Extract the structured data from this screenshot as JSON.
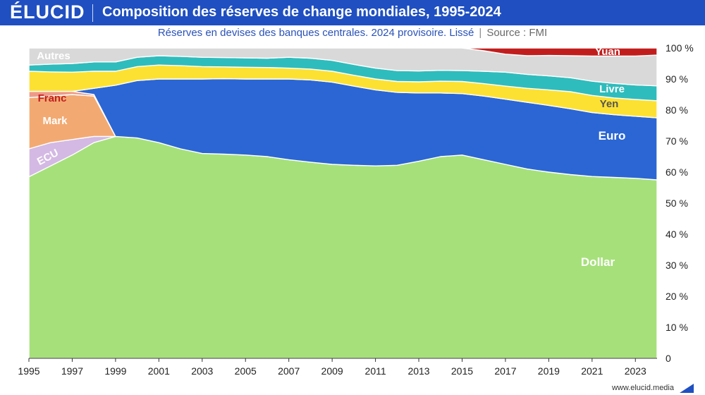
{
  "header": {
    "logo": "ÉLUCID",
    "title": "Composition des réserves de change mondiales, 1995-2024",
    "subtitle": "Réserves en devises des banques centrales. 2024 provisoire. Lissé",
    "source": "Source : FMI"
  },
  "footer": {
    "url": "www.elucid.media"
  },
  "colors": {
    "header_bg": "#1f4fc1",
    "dollar": "#a6e07a",
    "ecu": "#d3b9e3",
    "mark": "#f2aa72",
    "franc": "#ee9a88",
    "euro": "#2b66d4",
    "yen": "#fde132",
    "livre": "#2fbcbc",
    "autres": "#d9d9d9",
    "yuan": "#c21d1d"
  },
  "chart_data": {
    "type": "area",
    "stacked": true,
    "x": [
      1995,
      1996,
      1997,
      1998,
      1999,
      2000,
      2001,
      2002,
      2003,
      2004,
      2005,
      2006,
      2007,
      2008,
      2009,
      2010,
      2011,
      2012,
      2013,
      2014,
      2015,
      2016,
      2017,
      2018,
      2019,
      2020,
      2021,
      2022,
      2023,
      2024
    ],
    "xticks": [
      "1995",
      "1997",
      "1999",
      "2001",
      "2003",
      "2005",
      "2007",
      "2009",
      "2011",
      "2013",
      "2015",
      "2017",
      "2019",
      "2021",
      "2023"
    ],
    "yticks": [
      "0",
      "10 %",
      "20 %",
      "30 %",
      "40 %",
      "50 %",
      "60 %",
      "70 %",
      "80 %",
      "90 %",
      "100 %"
    ],
    "ylim": [
      0,
      100
    ],
    "series": [
      {
        "name": "Dollar",
        "values": [
          58.5,
          62.0,
          65.5,
          69.5,
          71.5,
          71.0,
          69.5,
          67.5,
          66.0,
          65.8,
          65.5,
          65.0,
          64.0,
          63.2,
          62.5,
          62.2,
          62.0,
          62.2,
          63.5,
          65.0,
          65.5,
          64.0,
          62.5,
          61.0,
          60.0,
          59.2,
          58.6,
          58.3,
          58.0,
          57.5
        ]
      },
      {
        "name": "ECU",
        "values": [
          9.0,
          7.5,
          5.0,
          2.0,
          0,
          0,
          0,
          0,
          0,
          0,
          0,
          0,
          0,
          0,
          0,
          0,
          0,
          0,
          0,
          0,
          0,
          0,
          0,
          0,
          0,
          0,
          0,
          0,
          0,
          0
        ]
      },
      {
        "name": "Mark",
        "values": [
          16.5,
          15.0,
          14.5,
          13.0,
          0,
          0,
          0,
          0,
          0,
          0,
          0,
          0,
          0,
          0,
          0,
          0,
          0,
          0,
          0,
          0,
          0,
          0,
          0,
          0,
          0,
          0,
          0,
          0,
          0,
          0
        ]
      },
      {
        "name": "Franc",
        "values": [
          2.0,
          1.5,
          1.0,
          0.5,
          0,
          0,
          0,
          0,
          0,
          0,
          0,
          0,
          0,
          0,
          0,
          0,
          0,
          0,
          0,
          0,
          0,
          0,
          0,
          0,
          0,
          0,
          0,
          0,
          0,
          0
        ]
      },
      {
        "name": "Euro",
        "values": [
          0,
          0,
          0,
          2.0,
          16.5,
          18.5,
          20.5,
          22.5,
          24.0,
          24.3,
          24.5,
          25.0,
          26.0,
          26.5,
          26.5,
          25.5,
          24.5,
          23.5,
          22.0,
          20.5,
          19.8,
          20.5,
          21.0,
          21.5,
          21.5,
          21.2,
          20.6,
          20.2,
          20.0,
          20.0
        ]
      },
      {
        "name": "Yen",
        "values": [
          6.5,
          6.3,
          6.2,
          5.5,
          4.5,
          4.5,
          4.5,
          4.3,
          4.0,
          3.8,
          3.8,
          3.7,
          3.5,
          3.5,
          3.5,
          3.5,
          3.5,
          3.5,
          3.6,
          3.8,
          3.9,
          4.0,
          4.2,
          4.5,
          5.0,
          5.5,
          5.5,
          5.4,
          5.4,
          5.5
        ]
      },
      {
        "name": "Livre",
        "values": [
          2.0,
          2.5,
          2.8,
          3.0,
          3.0,
          3.0,
          3.0,
          3.0,
          3.0,
          3.0,
          3.0,
          3.0,
          3.5,
          3.5,
          3.5,
          3.5,
          3.5,
          3.5,
          3.5,
          3.5,
          3.5,
          4.0,
          4.5,
          4.5,
          4.5,
          4.5,
          4.6,
          4.7,
          4.7,
          4.8
        ]
      },
      {
        "name": "Autres",
        "values": [
          5.5,
          5.2,
          5.0,
          4.5,
          4.5,
          3.0,
          2.5,
          2.7,
          3.0,
          3.1,
          3.2,
          3.3,
          3.0,
          3.3,
          4.0,
          5.3,
          6.5,
          7.3,
          7.4,
          7.2,
          7.3,
          6.6,
          5.8,
          6.0,
          6.6,
          7.1,
          8.1,
          8.8,
          9.3,
          9.9
        ]
      },
      {
        "name": "Yuan",
        "values": [
          0,
          0,
          0,
          0,
          0,
          0,
          0,
          0,
          0,
          0,
          0,
          0,
          0,
          0,
          0,
          0,
          0,
          0,
          0,
          0,
          0,
          0.9,
          2.0,
          2.5,
          2.4,
          2.5,
          2.6,
          2.6,
          2.6,
          2.3
        ]
      }
    ]
  }
}
